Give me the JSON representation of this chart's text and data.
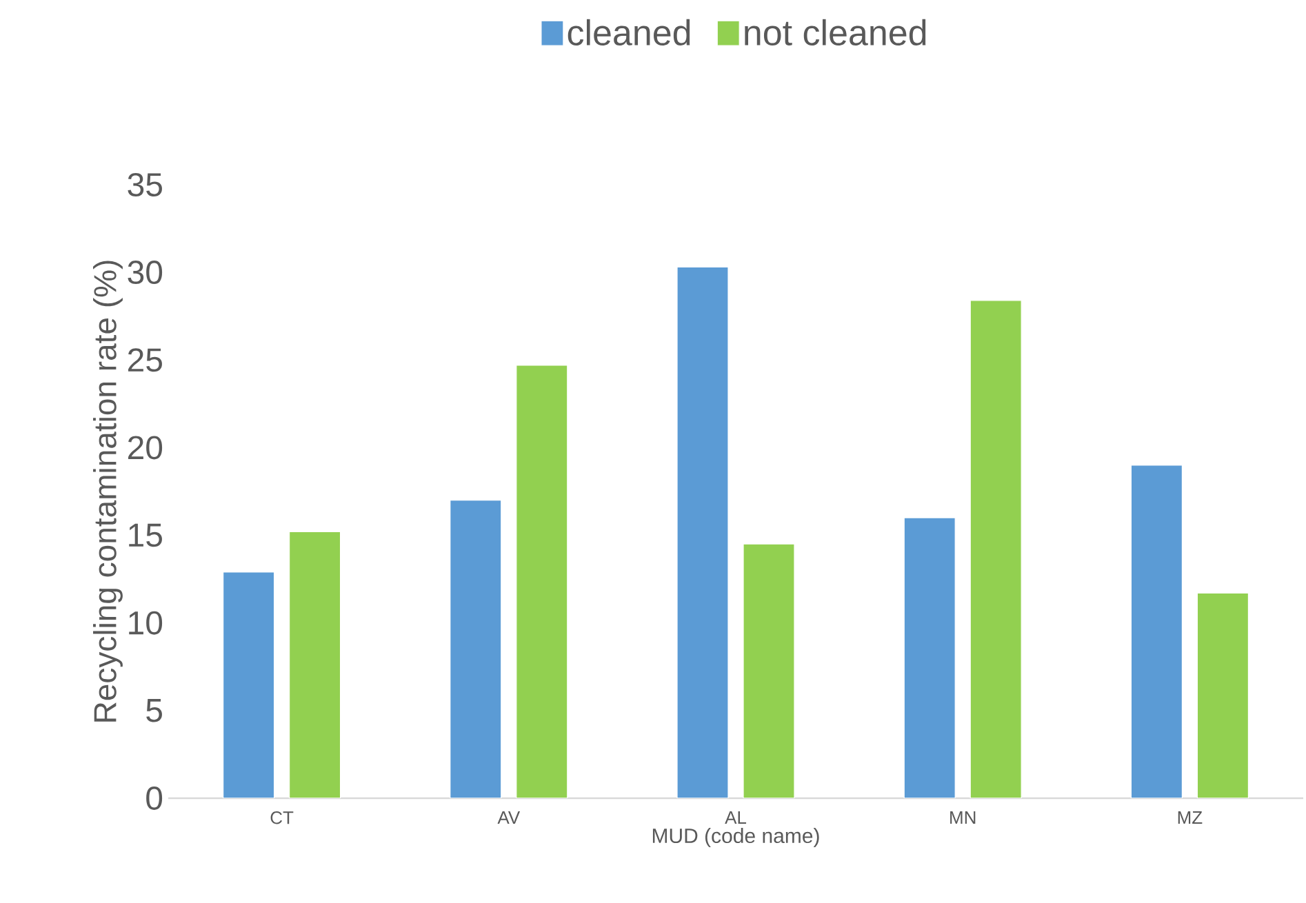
{
  "chart_data": {
    "type": "bar",
    "xlabel": "MUD (code name)",
    "ylabel": "Recycling contamination rate (%)",
    "categories": [
      "CT",
      "AV",
      "AL",
      "MN",
      "MZ"
    ],
    "series": [
      {
        "name": "cleaned",
        "color": "#5b9bd5",
        "values": [
          12.9,
          17.0,
          30.3,
          16.0,
          19.0
        ]
      },
      {
        "name": "not cleaned",
        "color": "#92d050",
        "values": [
          15.2,
          24.7,
          14.5,
          28.4,
          11.7
        ]
      }
    ],
    "ylim": [
      0,
      35
    ],
    "yticks": [
      0,
      5,
      10,
      15,
      20,
      25,
      30,
      35
    ],
    "legend": "top"
  }
}
